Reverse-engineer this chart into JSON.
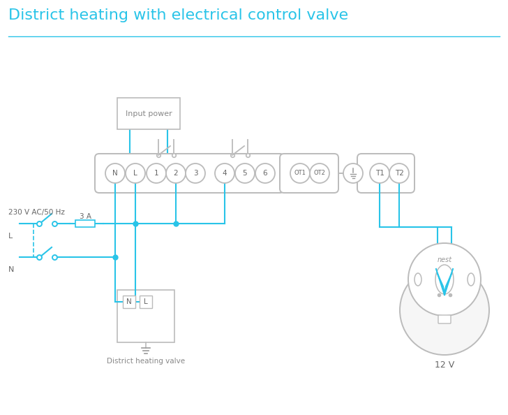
{
  "title": "District heating with electrical control valve",
  "title_color": "#29C4E8",
  "line_color": "#29C4E8",
  "lgray": "#BBBBBB",
  "mgray": "#999999",
  "dgray": "#666666",
  "tcolor": "#888888",
  "bg_color": "#FFFFFF",
  "terminal_labels": [
    "N",
    "L",
    "1",
    "2",
    "3",
    "4",
    "5",
    "6"
  ],
  "terminal_labels2": [
    "OT1",
    "OT2"
  ],
  "terminal_labels3": [
    "T1",
    "T2"
  ],
  "label_230v": "230 V AC/50 Hz",
  "label_L": "L",
  "label_N": "N",
  "label_3A": "3 A",
  "label_input_power": "Input power",
  "label_district_valve": "District heating valve",
  "label_12v": "12 V",
  "label_nest": "nest"
}
